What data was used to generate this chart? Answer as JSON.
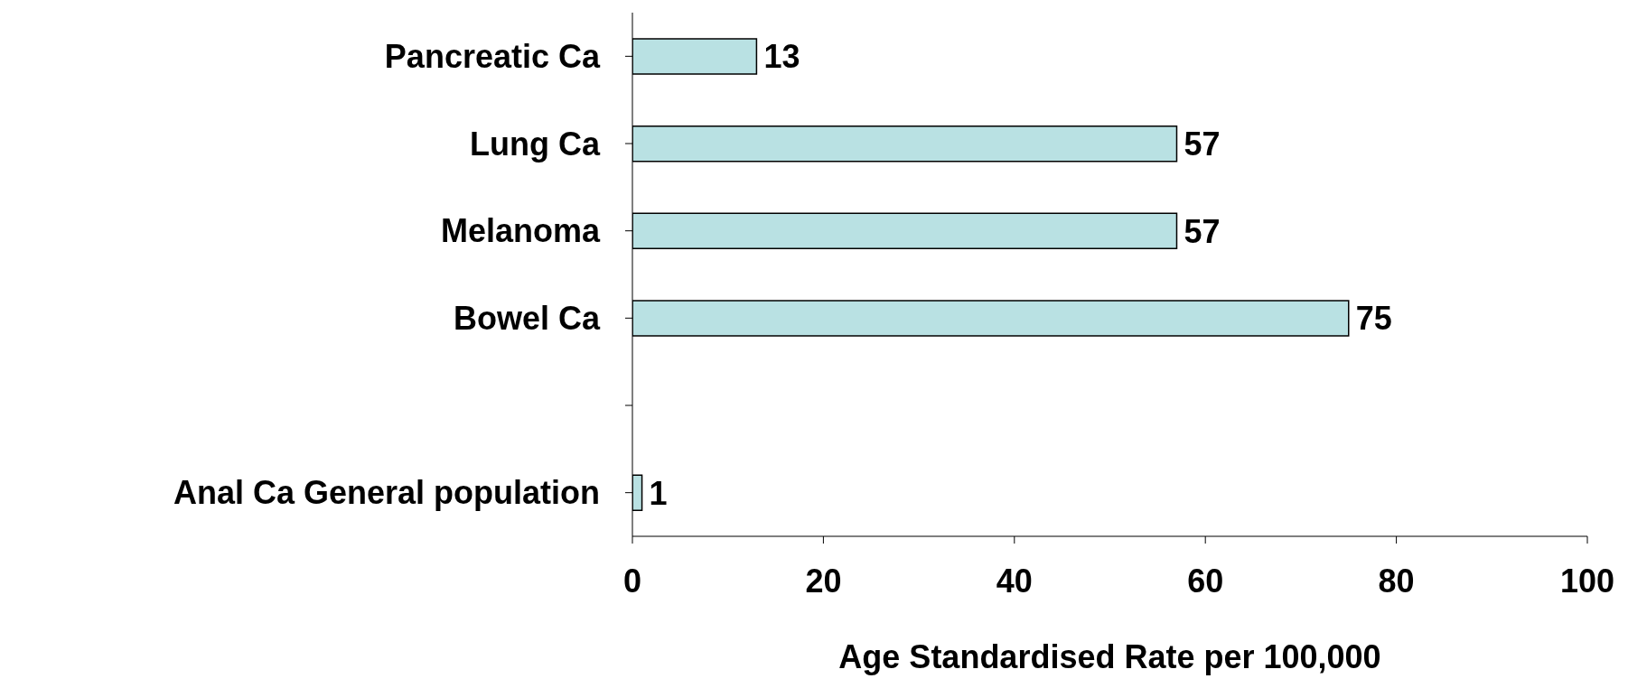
{
  "chart_data": {
    "type": "bar",
    "orientation": "horizontal",
    "xlabel": "Age Standardised Rate per 100,000",
    "categories": [
      "Pancreatic Ca",
      "Lung Ca",
      "Melanoma",
      "Bowel Ca",
      null,
      "Anal Ca General population"
    ],
    "values": [
      13,
      57,
      57,
      75,
      null,
      1
    ],
    "color": "#b9e1e3",
    "xlim": [
      0,
      100
    ],
    "xticks": [
      0,
      20,
      40,
      60,
      80,
      100
    ],
    "data_labels": true,
    "grid": false,
    "legend": false
  }
}
